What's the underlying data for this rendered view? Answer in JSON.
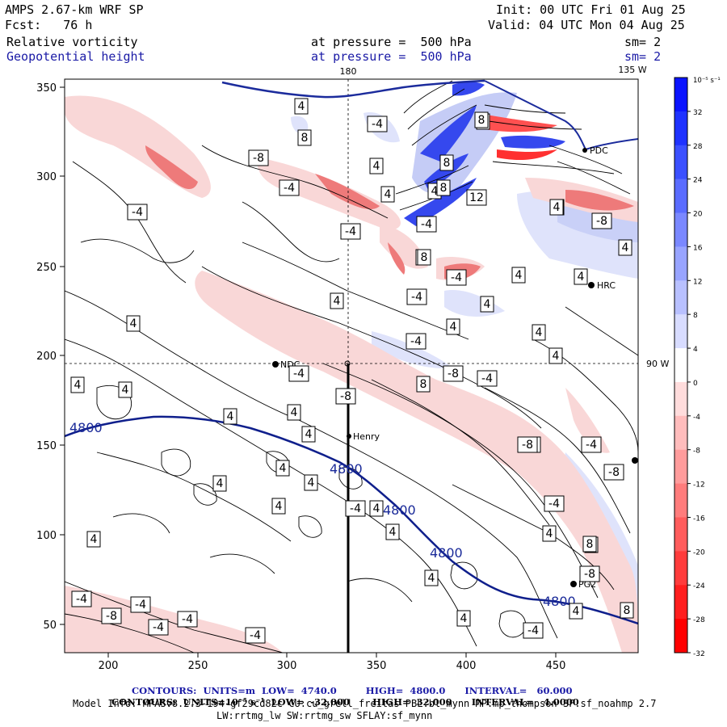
{
  "header": {
    "model": "AMPS 2.67-km WRF SP",
    "init": "Init: 00 UTC Fri 01 Aug 25",
    "fcst": "Fcst:   76 h",
    "valid": "Valid: 04 UTC Mon 04 Aug 25",
    "field1": "Relative vorticity",
    "field1_level": "at pressure =  500 hPa",
    "field1_sm": "sm= 2",
    "field2": "Geopotential height",
    "field2_level": "at pressure =  500 hPa",
    "field2_sm": "sm= 2"
  },
  "map": {
    "top_labels": [
      "180",
      "135 W"
    ],
    "right_label": "90 W",
    "x_ticks": [
      "200",
      "250",
      "300",
      "350",
      "400",
      "450"
    ],
    "y_ticks": [
      "50",
      "100",
      "150",
      "200",
      "250",
      "300",
      "350"
    ],
    "stations": [
      "NDC",
      "Henry",
      "HRC",
      "PDC",
      "PG2"
    ],
    "height_labels": [
      "4800",
      "4800",
      "4800",
      "4800",
      "4800"
    ],
    "vort_labels_pos": [
      "4",
      "8",
      "4",
      "8",
      "4",
      "8",
      "4",
      "8",
      "4",
      "8",
      "4",
      "4",
      "4",
      "4",
      "4",
      "4",
      "4",
      "4",
      "4",
      "4",
      "4",
      "4",
      "4",
      "4",
      "8",
      "8",
      "4",
      "4",
      "8",
      "8",
      "4",
      "4",
      "4",
      "4",
      "4",
      "4",
      "4",
      "4",
      "8",
      "12",
      "4",
      "4",
      "8",
      "4"
    ],
    "vort_labels_neg": [
      "-4",
      "-8",
      "-4",
      "-4",
      "-4",
      "-4",
      "-4",
      "-8",
      "-4",
      "-8",
      "-4",
      "-4",
      "-4",
      "-8",
      "-4",
      "-8",
      "-4",
      "-8",
      "-4",
      "-4",
      "-8",
      "-4",
      "-4",
      "-4",
      "-4",
      "-4",
      "-8",
      "-8"
    ]
  },
  "colorbar": {
    "unit": "10⁻⁵ s⁻¹",
    "ticks": [
      "32",
      "28",
      "24",
      "20",
      "16",
      "12",
      "8",
      "4",
      "0",
      "-4",
      "-8",
      "-12",
      "-16",
      "-20",
      "-24",
      "-28",
      "-32"
    ],
    "colors": [
      "#0a14ff",
      "#1e32ff",
      "#3b50ff",
      "#5a6cff",
      "#7a88ff",
      "#98a4ff",
      "#b8c0ff",
      "#d8dcff",
      "#ffffff",
      "#ffdcdc",
      "#ffbcbc",
      "#ff9c9c",
      "#ff7c7c",
      "#ff5c5c",
      "#ff3c3c",
      "#ff1e1e",
      "#ff0000"
    ]
  },
  "footer": {
    "line1_label": "CONTOURS:",
    "line1_units": "UNITS=m",
    "line1_low": "LOW=  4740.0",
    "line1_high": "HIGH=  4800.0",
    "line1_interval": "INTERVAL=   60.000",
    "line2_label": "CONTOURS:",
    "line2_units": "UNITS=10⁻⁵ s⁻¹",
    "line2_low": "LOW=  -32.000",
    "line2_high": "HIGH=  32.000",
    "line2_interval": "INTERVAL=   4.0000",
    "line3": "Model Info: MPASv8.2.3-194-gf29cd82c CU:cu_grell_freitas PBL:bl_mynn MP:mp_thompson SF:sf_noahmp 2.7",
    "line4": "LW:rrtmg_lw SW:rrtmg_sw SFLAY:sf_mynn"
  }
}
